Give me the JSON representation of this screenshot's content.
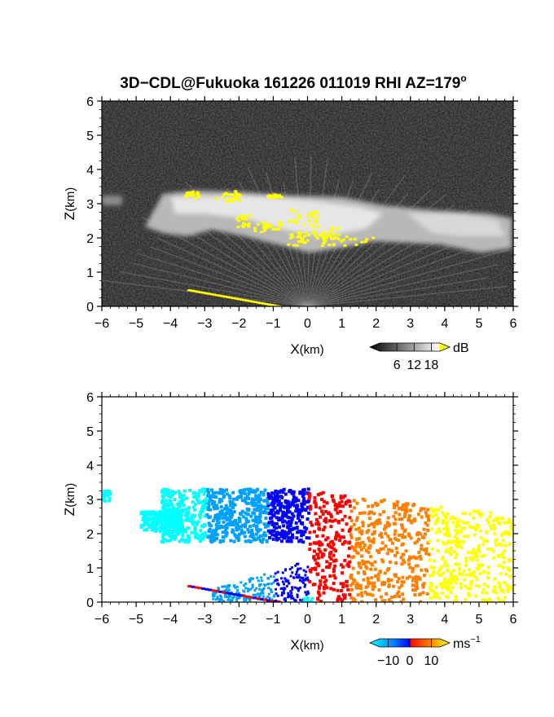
{
  "title": {
    "prefix": "3D−CDL@Fukuoka 161226 011019 RHI AZ=179",
    "degree_mark": "o"
  },
  "colors": {
    "background_noise": "#2a2a2a",
    "echo_bright": "#f2f2f2",
    "signal_highlight": "#ffff00",
    "velocity_negative": [
      "#00ffff",
      "#00a0ff",
      "#0000ff"
    ],
    "velocity_positive": [
      "#ff0000",
      "#ff8000",
      "#ffff00"
    ]
  },
  "chart_data": [
    {
      "type": "heatmap",
      "name": "signal-panel",
      "quantity": "dB",
      "xlabel": "X",
      "xunit": "(km)",
      "ylabel": "Z",
      "yunit": "(km)",
      "xlim": [
        -6,
        6
      ],
      "ylim": [
        0,
        6
      ],
      "x_ticks": [
        -6,
        -5,
        -4,
        -3,
        -2,
        -1,
        0,
        1,
        2,
        3,
        4,
        5,
        6
      ],
      "y_ticks": [
        0,
        1,
        2,
        3,
        4,
        5,
        6
      ],
      "grid": false,
      "background_level": "noise",
      "features": [
        {
          "kind": "cloud_layer_top_km",
          "value": 3.3
        },
        {
          "kind": "cloud_layer_base_km",
          "value": 1.6
        },
        {
          "kind": "layer_extent_km",
          "x_from": -6,
          "x_to": 6
        }
      ],
      "colorbar": {
        "unit": "dB",
        "ticks": [
          6,
          12,
          18
        ],
        "range": [
          0,
          21
        ],
        "extend": "both",
        "palette": "grayscale-to-yellow"
      }
    },
    {
      "type": "heatmap",
      "name": "velocity-panel",
      "quantity": "radial velocity",
      "xlabel": "X",
      "xunit": "(km)",
      "ylabel": "Z",
      "yunit": "(km)",
      "xlim": [
        -6,
        6
      ],
      "ylim": [
        0,
        6
      ],
      "x_ticks": [
        -6,
        -5,
        -4,
        -3,
        -2,
        -1,
        0,
        1,
        2,
        3,
        4,
        5,
        6
      ],
      "y_ticks": [
        0,
        1,
        2,
        3,
        4,
        5,
        6
      ],
      "grid": false,
      "background_level": "no data (white)",
      "features": [
        {
          "kind": "approaching_region",
          "x_from": -5.6,
          "x_to": 0,
          "sign": "negative"
        },
        {
          "kind": "receding_region",
          "x_from": 0,
          "x_to": 6,
          "sign": "positive"
        }
      ],
      "colorbar": {
        "unit": "ms",
        "unit_superscript": "−1",
        "ticks": [
          -10,
          0,
          10
        ],
        "tick_labels": [
          "−10",
          "0",
          "10"
        ],
        "range": [
          -14,
          14
        ],
        "extend": "both",
        "palette": "cyan-blue-red-yellow"
      }
    }
  ]
}
